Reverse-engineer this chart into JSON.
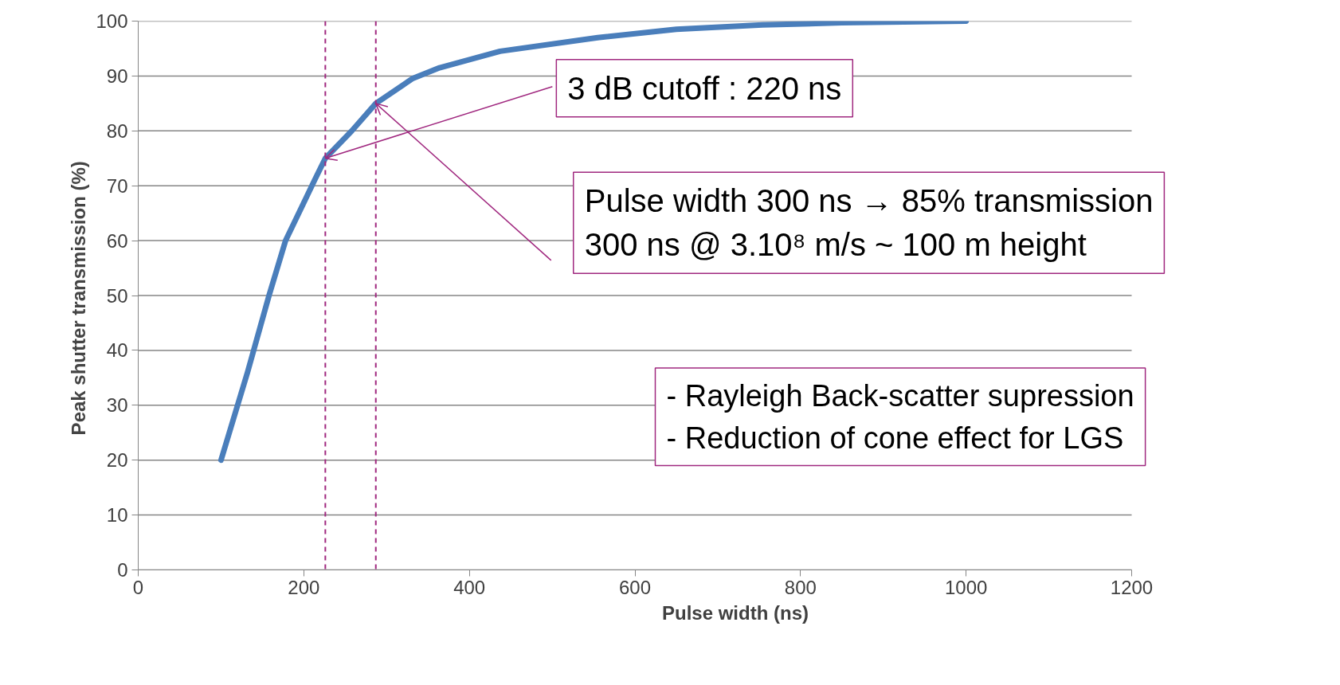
{
  "chart_data": {
    "type": "line",
    "xlabel": "Pulse width (ns)",
    "ylabel": "Peak shutter transmission  (%)",
    "x": [
      100,
      132,
      158,
      178,
      213,
      226,
      258,
      287,
      331,
      364,
      437,
      555,
      650,
      754,
      850,
      1000
    ],
    "series": [
      {
        "color": "#4a7ebb",
        "values": [
          20,
          36,
          50,
          60,
          71,
          75,
          80,
          85,
          89.5,
          91.5,
          94.5,
          97,
          98.5,
          99.3,
          99.7,
          100
        ]
      }
    ],
    "xlim": [
      0,
      1200
    ],
    "xticks": [
      0,
      200,
      400,
      600,
      800,
      1000,
      1200
    ],
    "ylim": [
      0,
      100
    ],
    "yticks": [
      0,
      10,
      20,
      30,
      40,
      50,
      60,
      70,
      80,
      90,
      100
    ],
    "grid": "y",
    "marker": "none",
    "line_style": "solid",
    "ref_lines": [
      {
        "axis": "x",
        "value": 226,
        "color": "#a0287f",
        "line_style": "dashed"
      },
      {
        "axis": "x",
        "value": 287,
        "color": "#a0287f",
        "line_style": "dashed"
      }
    ],
    "annotations": [
      {
        "text": "3 dB cutoff : 220 ns",
        "x": 226,
        "y": 75
      },
      {
        "text": "Pulse width 300 ns → 85% transmission\n300 ns @ 3.10⁸ m/s ~ 100 m height",
        "x": 287,
        "y": 85
      },
      "- Rayleigh Back-scatter supression\n- Reduction of cone effect for LGS"
    ]
  }
}
